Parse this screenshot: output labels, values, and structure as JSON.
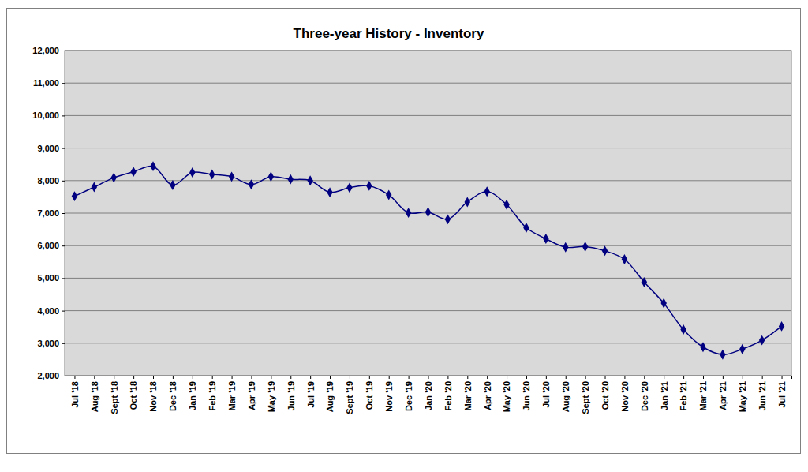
{
  "chart_data": {
    "type": "line",
    "title": "Three-year History - Inventory",
    "categories": [
      "Jul '18",
      "Aug '18",
      "Sept '18",
      "Oct '18",
      "Nov '18",
      "Dec '18",
      "Jan '19",
      "Feb '19",
      "Mar '19",
      "Apr '19",
      "May '19",
      "Jun '19",
      "Jul '19",
      "Aug '19",
      "Sept '19",
      "Oct '19",
      "Nov '19",
      "Dec '19",
      "Jan '20",
      "Feb '20",
      "Mar '20",
      "Apr '20",
      "May '20",
      "Jun '20",
      "Jul '20",
      "Aug '20",
      "Sept '20",
      "Oct '20",
      "Nov '20",
      "Dec '20",
      "Jan '21",
      "Feb '21",
      "Mar '21",
      "Apr '21",
      "May '21",
      "Jun '21",
      "Jul '21"
    ],
    "values": [
      7520,
      7800,
      8090,
      8270,
      8440,
      7860,
      8250,
      8190,
      8120,
      7880,
      8120,
      8040,
      8000,
      7640,
      7780,
      7840,
      7560,
      7010,
      7030,
      6810,
      7340,
      7660,
      7260,
      6550,
      6210,
      5950,
      5970,
      5840,
      5580,
      4880,
      4230,
      3420,
      2880,
      2650,
      2820,
      3090,
      3520
    ],
    "color": "#000080",
    "marker": "diamond",
    "line_style": "solid",
    "ylim": [
      2000,
      12000
    ],
    "yticks": [
      {
        "value": 2000,
        "label": "2,000"
      },
      {
        "value": 3000,
        "label": "3,000"
      },
      {
        "value": 4000,
        "label": "4,000"
      },
      {
        "value": 5000,
        "label": "5,000"
      },
      {
        "value": 6000,
        "label": "6,000"
      },
      {
        "value": 7000,
        "label": "7,000"
      },
      {
        "value": 8000,
        "label": "8,000"
      },
      {
        "value": 9000,
        "label": "9,000"
      },
      {
        "value": 10000,
        "label": "10,000"
      },
      {
        "value": 11000,
        "label": "11,000"
      },
      {
        "value": 12000,
        "label": "12,000"
      }
    ],
    "grid": true
  }
}
